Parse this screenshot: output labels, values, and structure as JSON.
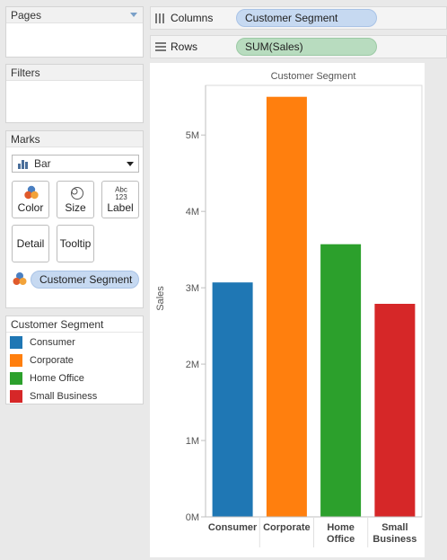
{
  "pages_card": {
    "title": "Pages"
  },
  "filters_card": {
    "title": "Filters"
  },
  "marks_card": {
    "title": "Marks",
    "mark_type": "Bar",
    "buttons": {
      "color": "Color",
      "size": "Size",
      "label": "Label",
      "detail": "Detail",
      "tooltip": "Tooltip"
    },
    "label_icon_text": {
      "top": "Abc",
      "bottom": "123"
    },
    "color_pill": "Customer Segment"
  },
  "legend": {
    "title": "Customer Segment",
    "items": [
      {
        "label": "Consumer",
        "color": "#1f77b4"
      },
      {
        "label": "Corporate",
        "color": "#ff7f0e"
      },
      {
        "label": "Home Office",
        "color": "#2ca02c"
      },
      {
        "label": "Small Business",
        "color": "#d62728"
      }
    ]
  },
  "shelves": {
    "columns": {
      "label": "Columns",
      "pill": "Customer Segment"
    },
    "rows": {
      "label": "Rows",
      "pill": "SUM(Sales)"
    }
  },
  "chart_data": {
    "type": "bar",
    "title": "Customer Segment",
    "ylabel": "Sales",
    "xlabel": "",
    "categories": [
      [
        "Consumer"
      ],
      [
        "Corporate"
      ],
      [
        "Home",
        "Office"
      ],
      [
        "Small",
        "Business"
      ]
    ],
    "values": [
      3070000,
      5500000,
      3570000,
      2790000
    ],
    "colors": [
      "#1f77b4",
      "#ff7f0e",
      "#2ca02c",
      "#d62728"
    ],
    "ylim": [
      0,
      5650000
    ],
    "yticks": [
      {
        "value": 0,
        "label": "0M"
      },
      {
        "value": 1000000,
        "label": "1M"
      },
      {
        "value": 2000000,
        "label": "2M"
      },
      {
        "value": 3000000,
        "label": "3M"
      },
      {
        "value": 4000000,
        "label": "4M"
      },
      {
        "value": 5000000,
        "label": "5M"
      }
    ],
    "grid": false,
    "legend": "none"
  }
}
